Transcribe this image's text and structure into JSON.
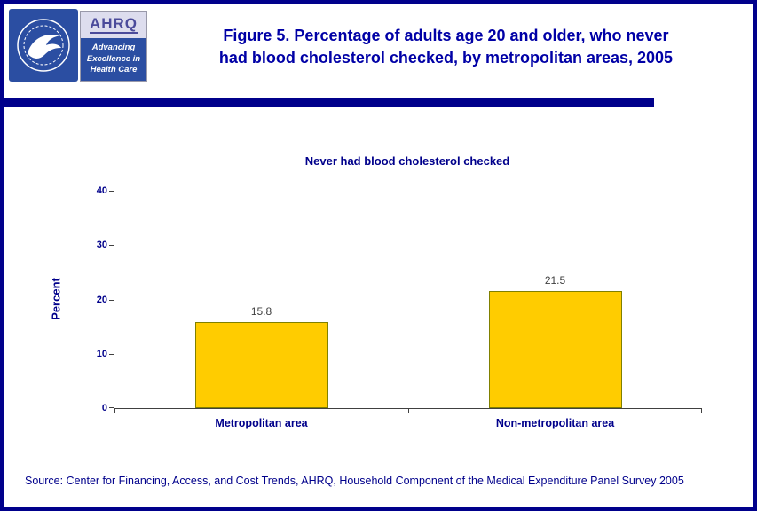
{
  "header": {
    "title": "Figure 5. Percentage of adults age 20 and older, who never\nhad blood cholesterol checked, by metropolitan areas, 2005",
    "ahrq": {
      "name": "AHRQ",
      "tagline_line1": "Advancing",
      "tagline_line2": "Excellence in",
      "tagline_line3": "Health Care"
    }
  },
  "chart_data": {
    "type": "bar",
    "title": "Never had blood cholesterol checked",
    "categories": [
      "Metropolitan area",
      "Non-metropolitan area"
    ],
    "values": [
      15.8,
      21.5
    ],
    "xlabel": "",
    "ylabel": "Percent",
    "ylim": [
      0,
      40
    ],
    "yticks": [
      0,
      10,
      20,
      30,
      40
    ],
    "grid": false,
    "legend_position": "none",
    "bar_color": "#FFCC00",
    "bar_border_color": "#808000"
  },
  "footer": {
    "source": "Source: Center for Financing, Access, and Cost Trends, AHRQ, Household Component of the Medical Expenditure Panel Survey 2005"
  },
  "colors": {
    "page_border": "#00008B",
    "navy_text": "#00008B",
    "figure_title_text": "#0000A6",
    "bar_fill": "#FFCC00",
    "bar_border": "#808000",
    "logo_blue": "#2B4EA2"
  }
}
